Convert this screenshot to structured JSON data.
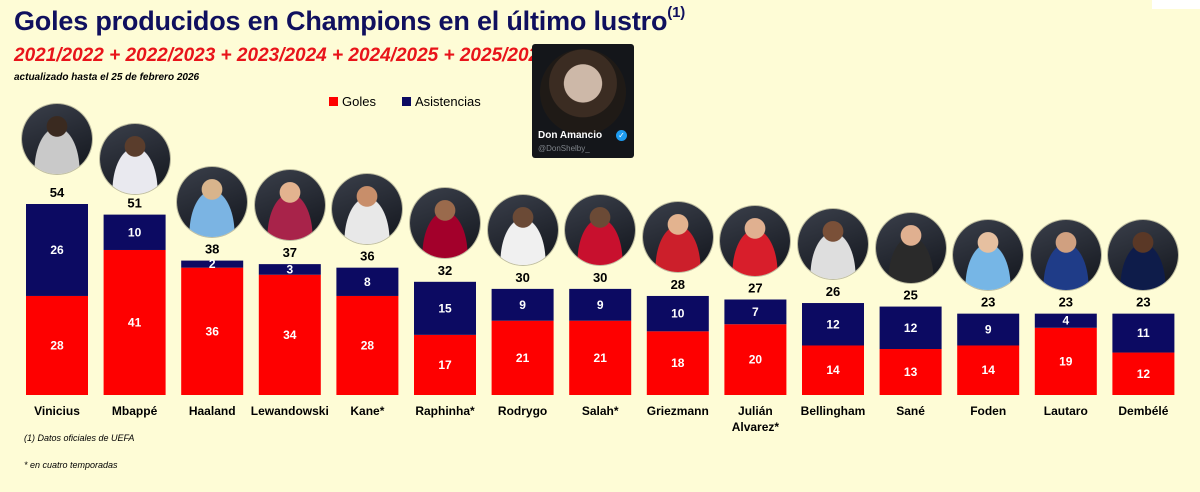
{
  "header": {
    "title": "Goles producidos en Champions en el último lustro",
    "title_note": "(1)",
    "subtitle": "2021/2022 + 2022/2023 + 2023/2024 + 2024/2025 + 2025/2026",
    "updated": "actualizado hasta el 25 de febrero 2026"
  },
  "watermark": {
    "name": "Don Amancio",
    "handle": "@DonShelby_",
    "verified_icon": "verified-check-icon"
  },
  "footnotes": {
    "source": "(1) Datos oficiales de UEFA",
    "asterisk": "* en cuatro temporadas"
  },
  "colors": {
    "goles": "#fe0000",
    "asistencias": "#0c0a62",
    "background": "#fefcd6",
    "title": "#10105e",
    "subtitle": "#e8141a"
  },
  "chart_data": {
    "type": "bar",
    "stacked": true,
    "categories": [
      "Vinicius",
      "Mbappé",
      "Haaland",
      "Lewandowski",
      "Kane*",
      "Raphinha*",
      "Rodrygo",
      "Salah*",
      "Griezmann",
      "Julián Alvarez*",
      "Bellingham",
      "Sané",
      "Foden",
      "Lautaro",
      "Dembélé"
    ],
    "series": [
      {
        "name": "Goles",
        "values": [
          28,
          41,
          36,
          34,
          28,
          17,
          21,
          21,
          18,
          20,
          14,
          13,
          14,
          19,
          12
        ]
      },
      {
        "name": "Asistencias",
        "values": [
          26,
          10,
          2,
          3,
          8,
          15,
          9,
          9,
          10,
          7,
          12,
          12,
          9,
          4,
          11
        ]
      }
    ],
    "totals": [
      54,
      51,
      38,
      37,
      36,
      32,
      30,
      30,
      28,
      27,
      26,
      25,
      23,
      23,
      23
    ],
    "legend_position": "top-left",
    "grid": false,
    "ylim": [
      0,
      54
    ],
    "player_photo_icons": [
      "vinicius-photo",
      "mbappe-photo",
      "haaland-photo",
      "lewandowski-photo",
      "kane-photo",
      "raphinha-photo",
      "rodrygo-photo",
      "salah-photo",
      "griezmann-photo",
      "alvarez-photo",
      "bellingham-photo",
      "sane-photo",
      "foden-photo",
      "lautaro-photo",
      "dembele-photo"
    ]
  }
}
